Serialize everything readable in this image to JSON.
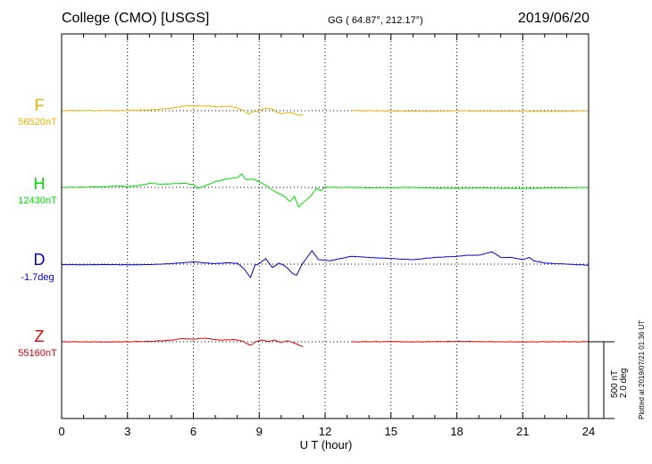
{
  "header": {
    "title": "College (CMO)  [USGS]",
    "coords": "GG ( 64.87°, 212.17°)",
    "date": "2019/06/20"
  },
  "scale": {
    "line1": "500 nT",
    "line2": "2.0 deg"
  },
  "plotted": "Plotted at 2019/07/21 01:36 UT",
  "chart_data": {
    "type": "line",
    "xlabel": "U T (hour)",
    "xlim": [
      0,
      24
    ],
    "xticks": [
      "0",
      "3",
      "6",
      "9",
      "12",
      "15",
      "18",
      "21",
      "24"
    ],
    "grid": true,
    "gap_hours": [
      11.0,
      13.2
    ],
    "series": [
      {
        "name": "F",
        "baseline_label": "56520nT",
        "color": "#f0b000",
        "units": "nT",
        "points": [
          [
            0,
            0
          ],
          [
            1,
            0
          ],
          [
            2,
            0
          ],
          [
            3,
            1
          ],
          [
            4,
            8
          ],
          [
            4.5,
            18
          ],
          [
            5,
            28
          ],
          [
            5.5,
            48
          ],
          [
            5.8,
            55
          ],
          [
            6.3,
            52
          ],
          [
            6.8,
            52
          ],
          [
            7.2,
            40
          ],
          [
            7.6,
            52
          ],
          [
            8.0,
            30
          ],
          [
            8.3,
            0
          ],
          [
            8.5,
            -40
          ],
          [
            8.7,
            -10
          ],
          [
            9.0,
            -5
          ],
          [
            9.3,
            30
          ],
          [
            9.6,
            18
          ],
          [
            9.8,
            -20
          ],
          [
            10.0,
            -35
          ],
          [
            10.3,
            -20
          ],
          [
            10.6,
            -30
          ],
          [
            10.8,
            -55
          ],
          [
            11.0,
            -40
          ],
          [
            13.2,
            0
          ],
          [
            14,
            0
          ],
          [
            15,
            -2
          ],
          [
            16,
            -5
          ],
          [
            17,
            -5
          ],
          [
            18,
            0
          ],
          [
            19,
            -4
          ],
          [
            20,
            -5
          ],
          [
            21,
            -4
          ],
          [
            22,
            -8
          ],
          [
            23,
            -5
          ],
          [
            24,
            0
          ]
        ]
      },
      {
        "name": "H",
        "baseline_label": "12430nT",
        "color": "#00e000",
        "units": "nT",
        "points": [
          [
            0,
            0
          ],
          [
            1,
            2
          ],
          [
            2,
            8
          ],
          [
            2.5,
            18
          ],
          [
            3,
            10
          ],
          [
            3.5,
            20
          ],
          [
            4,
            45
          ],
          [
            4.5,
            35
          ],
          [
            5,
            40
          ],
          [
            5.5,
            45
          ],
          [
            6,
            35
          ],
          [
            6.2,
            -10
          ],
          [
            6.5,
            15
          ],
          [
            7,
            65
          ],
          [
            7.5,
            95
          ],
          [
            8,
            110
          ],
          [
            8.2,
            150
          ],
          [
            8.4,
            85
          ],
          [
            8.7,
            95
          ],
          [
            9.0,
            60
          ],
          [
            9.3,
            25
          ],
          [
            9.6,
            -30
          ],
          [
            9.9,
            -70
          ],
          [
            10.2,
            -110
          ],
          [
            10.4,
            -160
          ],
          [
            10.6,
            -100
          ],
          [
            10.8,
            -220
          ],
          [
            11.0,
            -170
          ],
          [
            11.2,
            -130
          ],
          [
            11.4,
            -80
          ],
          [
            11.6,
            -10
          ],
          [
            11.8,
            -40
          ],
          [
            12.0,
            5
          ],
          [
            12.3,
            0
          ],
          [
            13.2,
            0
          ],
          [
            14,
            -5
          ],
          [
            15,
            -3
          ],
          [
            16,
            0
          ],
          [
            17,
            -8
          ],
          [
            18,
            -10
          ],
          [
            19,
            -5
          ],
          [
            20,
            -10
          ],
          [
            21,
            -12
          ],
          [
            22,
            -8
          ],
          [
            23,
            -5
          ],
          [
            24,
            0
          ]
        ]
      },
      {
        "name": "D",
        "baseline_label": "-1.7deg",
        "color": "#0000dd",
        "units": "deg",
        "points": [
          [
            0,
            -0.02
          ],
          [
            1,
            -0.03
          ],
          [
            2,
            -0.02
          ],
          [
            3,
            -0.03
          ],
          [
            4,
            -0.02
          ],
          [
            5,
            0.02
          ],
          [
            6,
            0.1
          ],
          [
            7,
            0.02
          ],
          [
            7.5,
            0.06
          ],
          [
            8,
            0.04
          ],
          [
            8.3,
            -0.2
          ],
          [
            8.6,
            -0.6
          ],
          [
            8.8,
            -0.05
          ],
          [
            9.0,
            0.02
          ],
          [
            9.3,
            0.25
          ],
          [
            9.6,
            -0.15
          ],
          [
            9.9,
            0.05
          ],
          [
            10.2,
            -0.1
          ],
          [
            10.5,
            -0.4
          ],
          [
            10.7,
            -0.5
          ],
          [
            10.9,
            -0.1
          ],
          [
            11.1,
            0.2
          ],
          [
            11.4,
            0.6
          ],
          [
            11.7,
            0.2
          ],
          [
            12.2,
            0.15
          ],
          [
            13.2,
            0.35
          ],
          [
            14,
            0.3
          ],
          [
            15,
            0.25
          ],
          [
            16,
            0.2
          ],
          [
            17,
            0.3
          ],
          [
            18,
            0.35
          ],
          [
            18.5,
            0.4
          ],
          [
            19,
            0.4
          ],
          [
            19.6,
            0.55
          ],
          [
            20,
            0.3
          ],
          [
            20.5,
            0.3
          ],
          [
            21,
            0.2
          ],
          [
            21.3,
            0.3
          ],
          [
            21.5,
            0.15
          ],
          [
            22,
            0.05
          ],
          [
            23,
            0
          ],
          [
            24,
            -0.05
          ]
        ]
      },
      {
        "name": "Z",
        "baseline_label": "55160nT",
        "color": "#dd0000",
        "units": "nT",
        "points": [
          [
            0,
            0
          ],
          [
            1,
            0
          ],
          [
            2,
            -2
          ],
          [
            3,
            0
          ],
          [
            4,
            5
          ],
          [
            4.5,
            10
          ],
          [
            5,
            18
          ],
          [
            5.5,
            35
          ],
          [
            6,
            28
          ],
          [
            6.5,
            40
          ],
          [
            7,
            25
          ],
          [
            7.3,
            18
          ],
          [
            7.8,
            25
          ],
          [
            8.2,
            10
          ],
          [
            8.4,
            -15
          ],
          [
            8.6,
            -40
          ],
          [
            8.8,
            -5
          ],
          [
            9.1,
            20
          ],
          [
            9.4,
            5
          ],
          [
            9.7,
            18
          ],
          [
            10.0,
            -10
          ],
          [
            10.3,
            10
          ],
          [
            10.6,
            -15
          ],
          [
            10.8,
            -35
          ],
          [
            11.0,
            -55
          ],
          [
            13.2,
            0
          ],
          [
            14,
            0
          ],
          [
            15,
            2
          ],
          [
            16,
            -2
          ],
          [
            17,
            2
          ],
          [
            18,
            5
          ],
          [
            19,
            2
          ],
          [
            20,
            0
          ],
          [
            21,
            -2
          ],
          [
            22,
            0
          ],
          [
            23,
            0
          ],
          [
            24,
            0
          ]
        ]
      }
    ]
  }
}
